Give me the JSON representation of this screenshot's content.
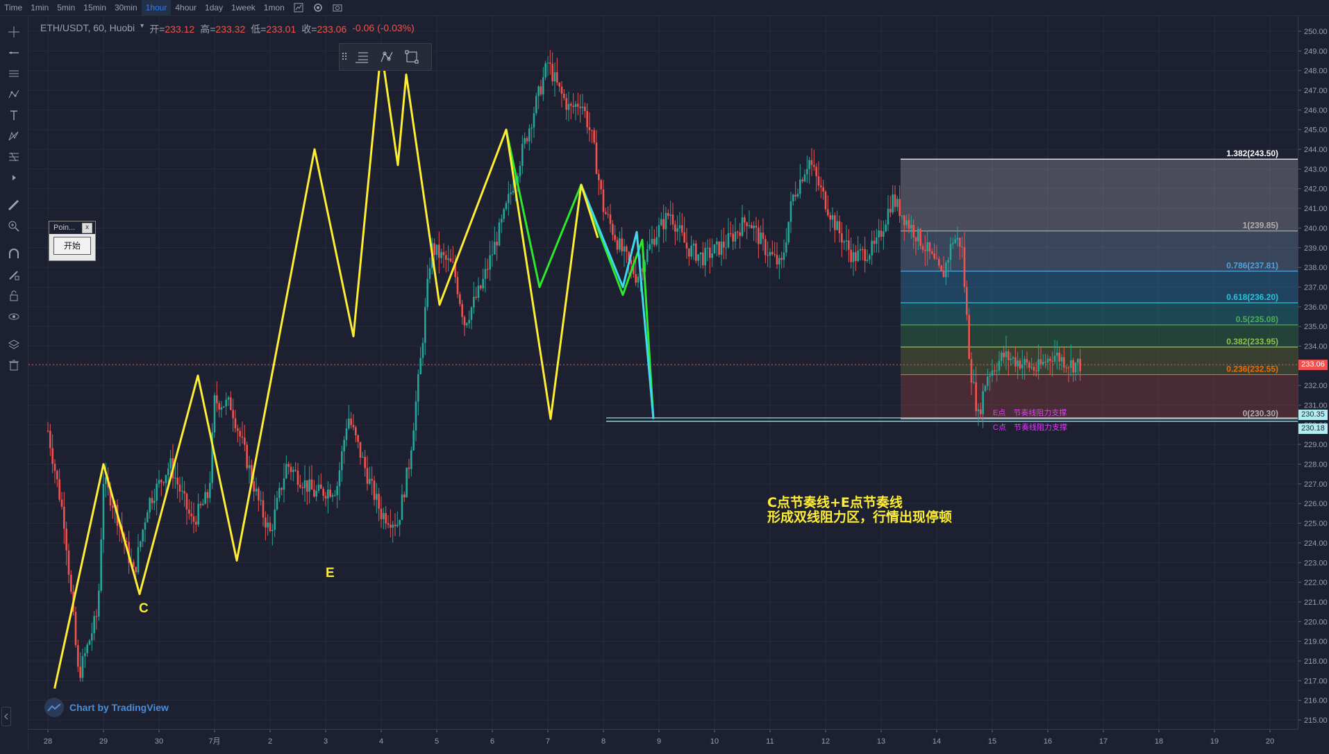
{
  "toolbar": {
    "timeframes": [
      {
        "label": "Time",
        "active": false
      },
      {
        "label": "1min",
        "active": false
      },
      {
        "label": "5min",
        "active": false
      },
      {
        "label": "15min",
        "active": false
      },
      {
        "label": "30min",
        "active": false
      },
      {
        "label": "1hour",
        "active": true
      },
      {
        "label": "4hour",
        "active": false
      },
      {
        "label": "1day",
        "active": false
      },
      {
        "label": "1week",
        "active": false
      },
      {
        "label": "1mon",
        "active": false
      }
    ]
  },
  "legend": {
    "symbol": "ETH/USDT, 60, Huobi",
    "open_label": "开=",
    "open": "233.12",
    "high_label": "高=",
    "high": "233.32",
    "low_label": "低=",
    "low": "233.01",
    "close_label": "收=",
    "close": "233.06",
    "change": "-0.06 (-0.03%)"
  },
  "popup": {
    "title": "Poin...",
    "button": "开始"
  },
  "annotation": {
    "line1": "C点节奏线+E点节奏线",
    "line2": "形成双线阻力区，行情出现停顿"
  },
  "wave_labels": {
    "c": "C",
    "e": "E"
  },
  "watermark": "Chart by TradingView",
  "support_labels": {
    "e": "E点　节奏线阻力支撑",
    "c": "C点　节奏线阻力支撑"
  },
  "fib_levels": [
    {
      "label": "1.382(243.50)",
      "price": 243.5,
      "color": "#ffffff"
    },
    {
      "label": "1(239.85)",
      "price": 239.85,
      "color": "#b0b0b0"
    },
    {
      "label": "0.786(237.81)",
      "price": 237.81,
      "color": "#4fa3e0"
    },
    {
      "label": "0.618(236.20)",
      "price": 236.2,
      "color": "#26c6da"
    },
    {
      "label": "0.5(235.08)",
      "price": 235.08,
      "color": "#4caf50"
    },
    {
      "label": "0.382(233.95)",
      "price": 233.95,
      "color": "#8bc34a"
    },
    {
      "label": "0.236(232.55)",
      "price": 232.55,
      "color": "#ef6c00"
    },
    {
      "label": "0(230.30)",
      "price": 230.3,
      "color": "#b0b0b0"
    }
  ],
  "price_tags": {
    "last": "233.06",
    "last_color": "#ef5350",
    "c_support": "230.35",
    "e_support": "230.18",
    "support_color": "#b2ebf2"
  },
  "chart_data": {
    "type": "candlestick",
    "symbol": "ETH/USDT",
    "interval": "60",
    "exchange": "Huobi",
    "y_ticks": [
      250,
      249,
      248,
      247,
      246,
      245,
      244,
      243,
      242,
      241,
      240,
      239,
      238,
      237,
      236,
      235,
      234,
      233,
      232,
      231,
      230,
      229,
      228,
      227,
      226,
      225,
      224,
      223,
      222,
      221,
      220,
      219,
      218,
      217,
      216,
      215
    ],
    "ylim": [
      214.5,
      250.5
    ],
    "x_ticks": [
      "28",
      "29",
      "30",
      "7月",
      "2",
      "3",
      "4",
      "5",
      "6",
      "7",
      "8",
      "9",
      "10",
      "11",
      "12",
      "13",
      "14",
      "15",
      "16",
      "17",
      "18",
      "19",
      "20"
    ],
    "price_path": [
      [
        0.0,
        229.7
      ],
      [
        0.3,
        225
      ],
      [
        0.55,
        217.2
      ],
      [
        0.9,
        220.5
      ],
      [
        1.0,
        227.2
      ],
      [
        1.2,
        225.8
      ],
      [
        1.55,
        222.4
      ],
      [
        1.8,
        226
      ],
      [
        2.2,
        228
      ],
      [
        2.6,
        225
      ],
      [
        2.9,
        226.5
      ],
      [
        3.0,
        231.2
      ],
      [
        3.3,
        231
      ],
      [
        3.8,
        226
      ],
      [
        4.0,
        224.5
      ],
      [
        4.3,
        228
      ],
      [
        4.8,
        226.5
      ],
      [
        5.2,
        226.8
      ],
      [
        5.4,
        230.5
      ],
      [
        5.8,
        227
      ],
      [
        6.0,
        225.5
      ],
      [
        6.3,
        225
      ],
      [
        6.5,
        228
      ],
      [
        6.7,
        233
      ],
      [
        6.9,
        239
      ],
      [
        7.3,
        238
      ],
      [
        7.5,
        235.2
      ],
      [
        7.8,
        237
      ],
      [
        8.2,
        240.5
      ],
      [
        8.6,
        244.5
      ],
      [
        9.0,
        248.4
      ],
      [
        9.2,
        247
      ],
      [
        9.4,
        246
      ],
      [
        9.6,
        246.5
      ],
      [
        9.8,
        244.5
      ],
      [
        10.0,
        241
      ],
      [
        10.3,
        239
      ],
      [
        10.6,
        237.5
      ],
      [
        10.9,
        239.5
      ],
      [
        11.2,
        240.8
      ],
      [
        11.5,
        239
      ],
      [
        11.8,
        238.5
      ],
      [
        12.2,
        239.2
      ],
      [
        12.6,
        240.5
      ],
      [
        12.9,
        239
      ],
      [
        13.2,
        238
      ],
      [
        13.4,
        241.5
      ],
      [
        13.7,
        243.5
      ],
      [
        13.9,
        242
      ],
      [
        14.2,
        240
      ],
      [
        14.5,
        238.5
      ],
      [
        14.9,
        239
      ],
      [
        15.2,
        241.5
      ],
      [
        15.5,
        240.2
      ],
      [
        15.8,
        239
      ],
      [
        16.1,
        237.5
      ],
      [
        16.3,
        239.5
      ],
      [
        16.45,
        239.2
      ],
      [
        16.6,
        233
      ],
      [
        16.75,
        230.4
      ],
      [
        16.9,
        232.5
      ],
      [
        17.2,
        233.5
      ],
      [
        17.5,
        233.2
      ],
      [
        17.8,
        232.8
      ],
      [
        18.1,
        233.6
      ],
      [
        18.4,
        233.1
      ],
      [
        18.6,
        233.06
      ]
    ],
    "current_price": 233.06,
    "overlays": {
      "yellow_zigzag": [
        [
          0.12,
          216.6
        ],
        [
          1.0,
          228.0
        ],
        [
          1.65,
          221.4
        ],
        [
          2.7,
          232.5
        ],
        [
          3.4,
          223.1
        ],
        [
          4.8,
          244.0
        ],
        [
          5.5,
          234.5
        ],
        [
          6.0,
          249.1
        ],
        [
          6.3,
          243.2
        ],
        [
          6.45,
          247.8
        ],
        [
          7.05,
          236.1
        ],
        [
          8.25,
          245.0
        ],
        [
          9.05,
          230.3
        ],
        [
          9.6,
          242.2
        ],
        [
          9.9,
          239.5
        ]
      ],
      "green_zigzag": [
        [
          8.25,
          245.0
        ],
        [
          8.85,
          237.0
        ],
        [
          9.6,
          242.2
        ],
        [
          10.35,
          236.6
        ],
        [
          10.7,
          239.4
        ],
        [
          10.9,
          230.3
        ]
      ],
      "cyan_zigzag": [
        [
          9.6,
          242.2
        ],
        [
          10.35,
          237.0
        ],
        [
          10.6,
          239.8
        ],
        [
          10.9,
          230.3
        ]
      ]
    },
    "horizontal_levels": [
      {
        "label": "C点节奏线阻力支撑",
        "price": 230.35
      },
      {
        "label": "E点节奏线阻力支撑",
        "price": 230.18
      }
    ]
  }
}
